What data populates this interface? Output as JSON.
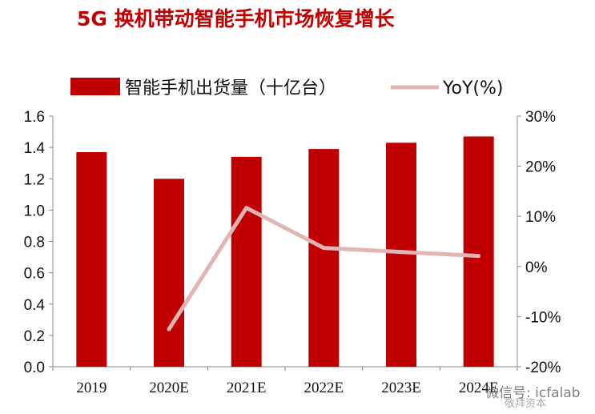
{
  "chart_data": {
    "type": "bar",
    "title": "5G 换机带动智能手机市场恢复增长",
    "categories": [
      "2019",
      "2020E",
      "2021E",
      "2022E",
      "2023E",
      "2024E"
    ],
    "series": [
      {
        "name": "智能手机出货量（十亿台）",
        "type": "bar",
        "axis": "left",
        "color": "#c00000",
        "values": [
          1.37,
          1.2,
          1.34,
          1.39,
          1.43,
          1.47
        ]
      },
      {
        "name": "YoY(%)",
        "type": "line",
        "axis": "right",
        "color": "#e3b4b4",
        "values": [
          null,
          -12.5,
          11.7,
          3.7,
          2.9,
          2.1
        ]
      }
    ],
    "y_left": {
      "min": 0,
      "max": 1.6,
      "ticks": [
        "0.0",
        "0.2",
        "0.4",
        "0.6",
        "0.8",
        "1.0",
        "1.2",
        "1.4",
        "1.6"
      ]
    },
    "y_right": {
      "min": -20,
      "max": 30,
      "ticks": [
        "-20%",
        "-10%",
        "0%",
        "10%",
        "20%",
        "30%"
      ]
    },
    "grid": false,
    "legend_position": "top"
  },
  "watermark": {
    "text": "微信号: icfalab",
    "sub": "敬拜资本"
  }
}
